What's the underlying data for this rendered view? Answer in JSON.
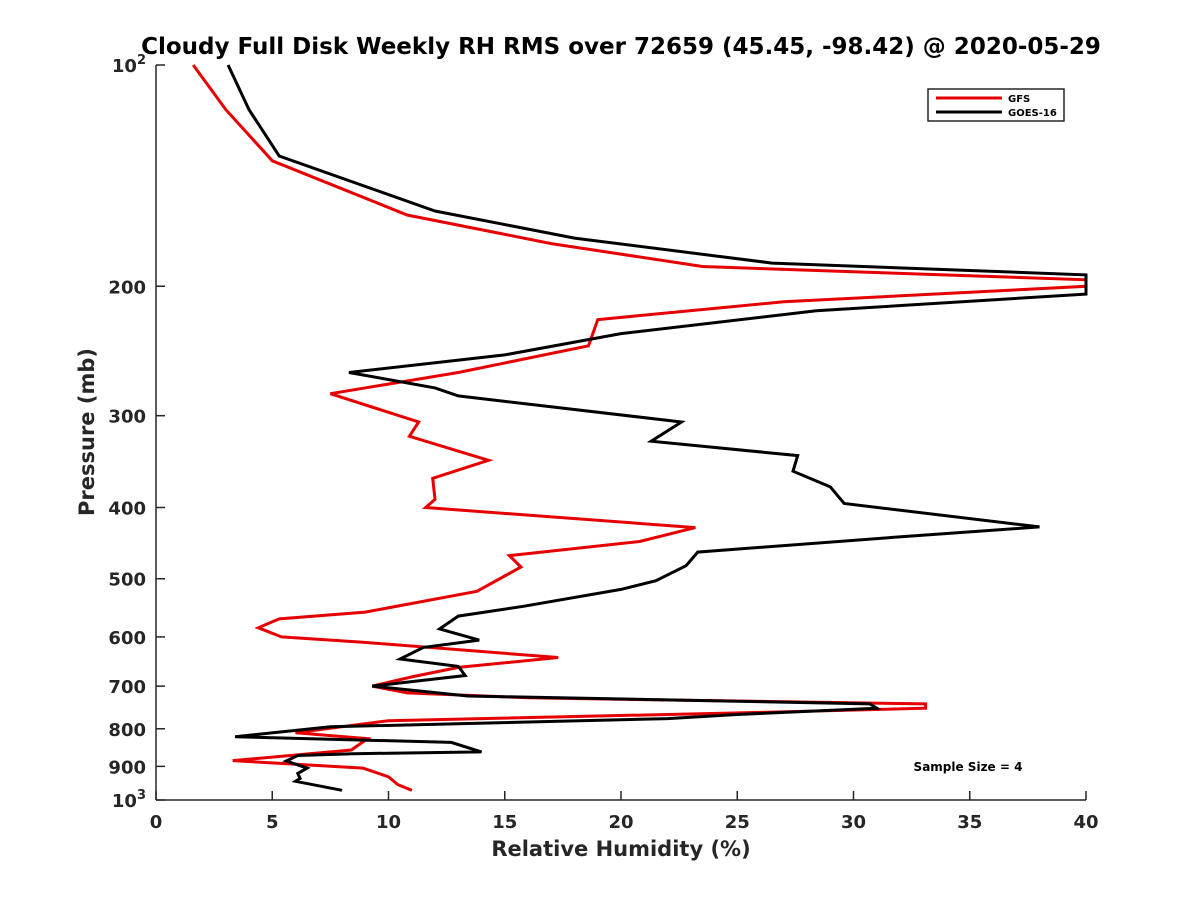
{
  "chart_data": {
    "type": "line",
    "title": "Cloudy Full Disk Weekly RH RMS over 72659 (45.45, -98.42) @ 2020-05-29",
    "xlabel": "Relative Humidity (%)",
    "ylabel": "Pressure (mb)",
    "xlim": [
      0,
      40
    ],
    "ylim": [
      100,
      1000
    ],
    "y_scale": "log",
    "y_reversed": true,
    "grid": false,
    "legend_position": "top-right",
    "annotation": "Sample Size = 4",
    "x_ticks": [
      "0",
      "5",
      "10",
      "15",
      "20",
      "25",
      "30",
      "35",
      "40"
    ],
    "y_ticks": [
      {
        "value": 100,
        "base": "10",
        "sup": "2"
      },
      {
        "value": 200,
        "label": "200"
      },
      {
        "value": 300,
        "label": "300"
      },
      {
        "value": 400,
        "label": "400"
      },
      {
        "value": 500,
        "label": "500"
      },
      {
        "value": 600,
        "label": "600"
      },
      {
        "value": 700,
        "label": "700"
      },
      {
        "value": 800,
        "label": "800"
      },
      {
        "value": 900,
        "label": "900"
      },
      {
        "value": 1000,
        "base": "10",
        "sup": "3"
      }
    ],
    "series": [
      {
        "name": "GFS",
        "color": "#e60000",
        "points": [
          [
            1.6,
            100
          ],
          [
            3.0,
            115
          ],
          [
            5.0,
            135
          ],
          [
            10.8,
            160
          ],
          [
            17.0,
            175
          ],
          [
            23.5,
            188
          ],
          [
            40,
            196
          ],
          [
            40,
            200
          ],
          [
            27.0,
            210
          ],
          [
            19.0,
            222
          ],
          [
            18.6,
            241
          ],
          [
            13.0,
            262
          ],
          [
            7.5,
            280
          ],
          [
            11.3,
            306
          ],
          [
            10.9,
            320
          ],
          [
            14.3,
            345
          ],
          [
            11.9,
            365
          ],
          [
            12.0,
            390
          ],
          [
            11.6,
            400
          ],
          [
            23.2,
            426
          ],
          [
            20.8,
            445
          ],
          [
            15.2,
            465
          ],
          [
            15.7,
            482
          ],
          [
            13.8,
            520
          ],
          [
            9.0,
            555
          ],
          [
            5.3,
            567
          ],
          [
            4.4,
            583
          ],
          [
            5.4,
            600
          ],
          [
            8.9,
            610
          ],
          [
            17.3,
            640
          ],
          [
            13.0,
            660
          ],
          [
            11.0,
            680
          ],
          [
            9.3,
            700
          ],
          [
            10.8,
            715
          ],
          [
            16.0,
            726
          ],
          [
            33.1,
            740
          ],
          [
            33.1,
            750
          ],
          [
            26.0,
            760
          ],
          [
            10.0,
            780
          ],
          [
            6.0,
            810
          ],
          [
            9.1,
            825
          ],
          [
            8.4,
            855
          ],
          [
            3.3,
            884
          ],
          [
            6.3,
            895
          ],
          [
            8.9,
            905
          ],
          [
            10.0,
            930
          ],
          [
            10.4,
            953
          ],
          [
            11.0,
            970
          ]
        ]
      },
      {
        "name": "GOES-16",
        "color": "#000000",
        "points": [
          [
            3.1,
            100
          ],
          [
            4.0,
            115
          ],
          [
            5.3,
            133
          ],
          [
            12.0,
            158
          ],
          [
            18.0,
            172
          ],
          [
            26.5,
            186
          ],
          [
            40,
            193
          ],
          [
            40,
            205
          ],
          [
            28.4,
            216
          ],
          [
            20.0,
            232
          ],
          [
            15.0,
            248
          ],
          [
            8.3,
            262
          ],
          [
            12.0,
            275
          ],
          [
            13.0,
            282
          ],
          [
            22.6,
            306
          ],
          [
            21.3,
            325
          ],
          [
            27.6,
            340
          ],
          [
            27.4,
            357
          ],
          [
            29.0,
            375
          ],
          [
            29.6,
            395
          ],
          [
            38.0,
            425
          ],
          [
            32.2,
            438
          ],
          [
            23.3,
            460
          ],
          [
            22.8,
            480
          ],
          [
            21.5,
            503
          ],
          [
            20.0,
            517
          ],
          [
            15.8,
            545
          ],
          [
            13.0,
            562
          ],
          [
            12.2,
            585
          ],
          [
            13.9,
            606
          ],
          [
            11.5,
            620
          ],
          [
            10.5,
            643
          ],
          [
            13.0,
            658
          ],
          [
            13.3,
            677
          ],
          [
            9.3,
            700
          ],
          [
            13.4,
            722
          ],
          [
            30.7,
            740
          ],
          [
            31.0,
            750
          ],
          [
            25.0,
            765
          ],
          [
            22.0,
            775
          ],
          [
            7.5,
            795
          ],
          [
            3.4,
            820
          ],
          [
            12.7,
            835
          ],
          [
            14.0,
            860
          ],
          [
            8.5,
            865
          ],
          [
            6.1,
            870
          ],
          [
            5.6,
            885
          ],
          [
            6.5,
            905
          ],
          [
            6.1,
            920
          ],
          [
            6.2,
            935
          ],
          [
            6.0,
            943
          ],
          [
            8.0,
            970
          ]
        ]
      }
    ]
  }
}
